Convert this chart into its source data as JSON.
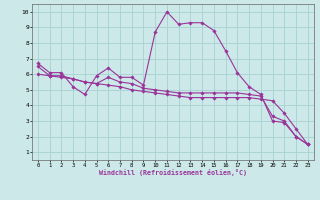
{
  "line1": {
    "x": [
      0,
      1,
      2,
      3,
      4,
      5,
      6,
      7,
      8,
      9,
      10,
      11,
      12,
      13,
      14,
      15,
      16,
      17,
      18,
      19,
      20,
      21,
      22,
      23
    ],
    "y": [
      6.7,
      6.1,
      6.1,
      5.2,
      4.7,
      5.9,
      6.4,
      5.8,
      5.8,
      5.3,
      8.7,
      10.0,
      9.2,
      9.3,
      9.3,
      8.8,
      7.5,
      6.1,
      5.2,
      4.7,
      3.0,
      2.9,
      2.0,
      1.5
    ]
  },
  "line2": {
    "x": [
      0,
      1,
      2,
      3,
      4,
      5,
      6,
      7,
      8,
      9,
      10,
      11,
      12,
      13,
      14,
      15,
      16,
      17,
      18,
      19,
      20,
      21,
      22,
      23
    ],
    "y": [
      6.5,
      5.9,
      5.9,
      5.7,
      5.5,
      5.4,
      5.8,
      5.5,
      5.4,
      5.1,
      5.0,
      4.9,
      4.8,
      4.8,
      4.8,
      4.8,
      4.8,
      4.8,
      4.7,
      4.6,
      3.3,
      3.0,
      2.0,
      1.5
    ]
  },
  "line3": {
    "x": [
      0,
      1,
      2,
      3,
      4,
      5,
      6,
      7,
      8,
      9,
      10,
      11,
      12,
      13,
      14,
      15,
      16,
      17,
      18,
      19,
      20,
      21,
      22,
      23
    ],
    "y": [
      6.0,
      5.9,
      5.8,
      5.7,
      5.5,
      5.4,
      5.3,
      5.2,
      5.0,
      4.9,
      4.8,
      4.7,
      4.6,
      4.5,
      4.5,
      4.5,
      4.5,
      4.5,
      4.5,
      4.4,
      4.3,
      3.5,
      2.5,
      1.5
    ]
  },
  "color": "#993399",
  "bg_color": "#cce8e8",
  "grid_color": "#aad4d4",
  "xlabel": "Windchill (Refroidissement éolien,°C)",
  "xlim": [
    -0.5,
    23.5
  ],
  "ylim": [
    0.5,
    10.5
  ],
  "yticks": [
    1,
    2,
    3,
    4,
    5,
    6,
    7,
    8,
    9,
    10
  ],
  "xticks": [
    0,
    1,
    2,
    3,
    4,
    5,
    6,
    7,
    8,
    9,
    10,
    11,
    12,
    13,
    14,
    15,
    16,
    17,
    18,
    19,
    20,
    21,
    22,
    23
  ]
}
